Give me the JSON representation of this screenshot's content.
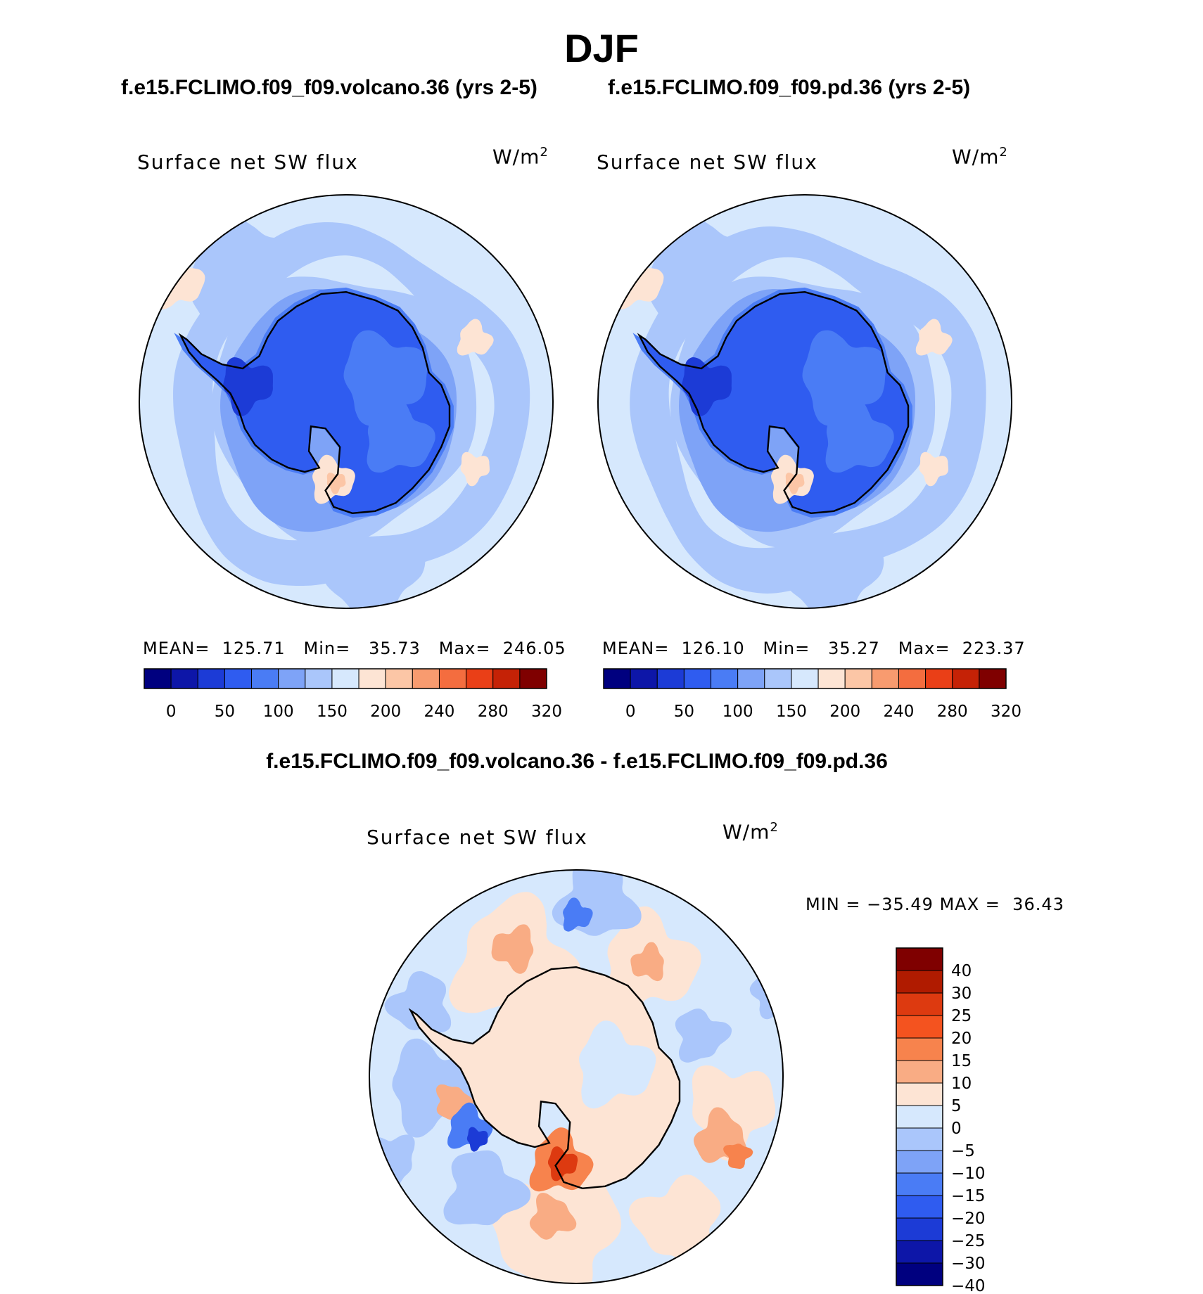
{
  "chart_data": [
    {
      "type": "heatmap",
      "panel": "left",
      "case_title": "f.e15.FCLIMO.f09_f09.volcano.36 (yrs 2-5)",
      "variable": "Surface net SW flux",
      "units": "W/m",
      "units_exp": "2",
      "stats": {
        "mean_label": "MEAN=",
        "mean": "125.71",
        "min_label": "Min=",
        "min": "35.73",
        "max_label": "Max=",
        "max": "246.05"
      },
      "colorbar_ticks": [
        "0",
        "50",
        "100",
        "150",
        "200",
        "240",
        "280",
        "320"
      ]
    },
    {
      "type": "heatmap",
      "panel": "right",
      "case_title": "f.e15.FCLIMO.f09_f09.pd.36 (yrs 2-5)",
      "variable": "Surface net SW flux",
      "units": "W/m",
      "units_exp": "2",
      "stats": {
        "mean_label": "MEAN=",
        "mean": "126.10",
        "min_label": "Min=",
        "min": "35.27",
        "max_label": "Max=",
        "max": "223.37"
      },
      "colorbar_ticks": [
        "0",
        "50",
        "100",
        "150",
        "200",
        "240",
        "280",
        "320"
      ]
    },
    {
      "type": "heatmap",
      "panel": "difference",
      "case_title": "f.e15.FCLIMO.f09_f09.volcano.36 - f.e15.FCLIMO.f09_f09.pd.36",
      "variable": "Surface net SW flux",
      "units": "W/m",
      "units_exp": "2",
      "stats": {
        "min_label": "MIN =",
        "min": "−35.49",
        "max_label": "MAX =",
        "max": "36.43"
      },
      "colorbar_ticks": [
        "40",
        "30",
        "25",
        "20",
        "15",
        "10",
        "5",
        "0",
        "−5",
        "−10",
        "−15",
        "−20",
        "−25",
        "−30",
        "−40"
      ]
    }
  ],
  "page_title": "DJF",
  "colors": {
    "abs_scale": [
      "#00007f",
      "#0d16a8",
      "#1c3bd6",
      "#2f5cf0",
      "#4a7cf5",
      "#7ea3f7",
      "#aac6fb",
      "#d6e8fd",
      "#fde4d4",
      "#fcc6a6",
      "#f89b6f",
      "#f46d3f",
      "#ea3f17",
      "#c52206",
      "#7f0000"
    ],
    "diff_scale": [
      "#7f0000",
      "#b01b00",
      "#dd3a10",
      "#f4531f",
      "#f7834d",
      "#f9ac84",
      "#fde4d4",
      "#d6e8fd",
      "#aac6fb",
      "#7ea3f7",
      "#4a7cf5",
      "#2f5cf0",
      "#1c3bd6",
      "#0d16a8",
      "#00007f"
    ]
  }
}
